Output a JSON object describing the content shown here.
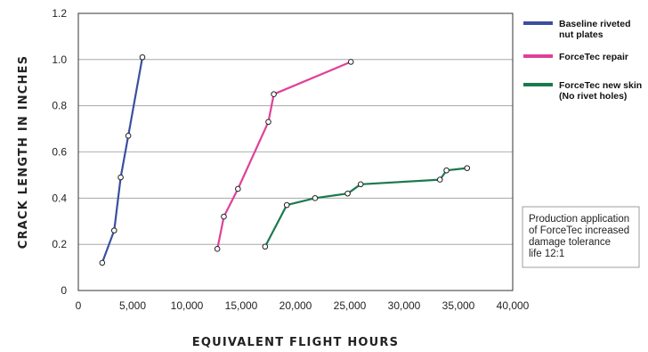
{
  "chart_data": {
    "type": "line",
    "xlabel": "EQUIVALENT FLIGHT HOURS",
    "ylabel": "CRACK LENGTH IN INCHES",
    "xlim": [
      0,
      40000
    ],
    "ylim": [
      0,
      1.2
    ],
    "x_ticks": [
      0,
      5000,
      10000,
      15000,
      20000,
      25000,
      30000,
      35000,
      40000
    ],
    "x_tick_labels": [
      "0",
      "5,000",
      "10,000",
      "15,000",
      "20,000",
      "25,000",
      "30,000",
      "35,000",
      "40,000"
    ],
    "y_ticks": [
      0,
      0.2,
      0.4,
      0.6,
      0.8,
      1.0,
      1.2
    ],
    "y_tick_labels": [
      "0",
      "0.2",
      "0.4",
      "0.6",
      "0.8",
      "1.0",
      "1.2"
    ],
    "grid": "horizontal",
    "legend_position": "top-right",
    "series": [
      {
        "name": [
          "Baseline riveted",
          "nut plates"
        ],
        "color": "#3a4fa0",
        "points": [
          [
            2200,
            0.12
          ],
          [
            3300,
            0.26
          ],
          [
            3900,
            0.49
          ],
          [
            4600,
            0.67
          ],
          [
            5900,
            1.01
          ]
        ]
      },
      {
        "name": [
          "ForceTec repair"
        ],
        "color": "#e0409a",
        "points": [
          [
            12800,
            0.18
          ],
          [
            13400,
            0.32
          ],
          [
            14700,
            0.44
          ],
          [
            17500,
            0.73
          ],
          [
            18000,
            0.85
          ],
          [
            25100,
            0.99
          ]
        ]
      },
      {
        "name": [
          "ForceTec new skin",
          "(No rivet holes)"
        ],
        "color": "#1a7a4e",
        "points": [
          [
            17200,
            0.19
          ],
          [
            19200,
            0.37
          ],
          [
            21800,
            0.4
          ],
          [
            24800,
            0.42
          ],
          [
            26000,
            0.46
          ],
          [
            33300,
            0.48
          ],
          [
            33900,
            0.52
          ],
          [
            35800,
            0.53
          ]
        ]
      }
    ],
    "annotation": [
      "Production application",
      "of ForceTec increased",
      "damage tolerance",
      "life 12:1"
    ]
  }
}
